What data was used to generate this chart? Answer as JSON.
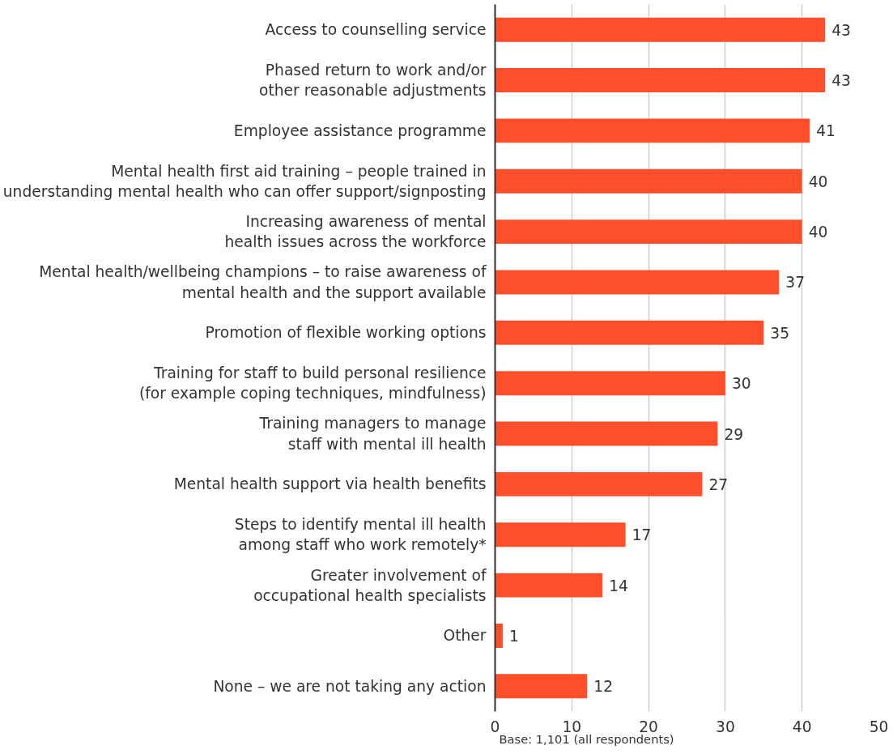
{
  "chart_data": {
    "type": "bar",
    "orientation": "horizontal",
    "categories": [
      "Access to counselling service",
      "Phased return to work and/or\nother reasonable adjustments",
      "Employee assistance programme",
      "Mental health first aid training – people trained in\nunderstanding mental health who can offer support/signposting",
      "Increasing awareness of mental\nhealth issues across the workforce",
      "Mental health/wellbeing champions – to raise awareness of\nmental health and the support available",
      "Promotion of flexible working options",
      "Training for staff to build personal resilience\n(for example coping techniques, mindfulness)",
      "Training managers to manage\nstaff with mental ill health",
      "Mental health support via health benefits",
      "Steps to identify mental ill health\namong staff who work remotely*",
      "Greater involvement of\noccupational health specialists",
      "Other",
      "None – we are not taking any action"
    ],
    "values": [
      43,
      43,
      41,
      40,
      40,
      37,
      35,
      30,
      29,
      27,
      17,
      14,
      1,
      12
    ],
    "color": "#ff4f2a",
    "data_labels": true,
    "xlim": [
      0,
      50
    ],
    "xticks": [
      0,
      10,
      20,
      30,
      40,
      50
    ],
    "grid": "x",
    "annotations": [
      "Base: 1,101 (all respondents)"
    ]
  }
}
